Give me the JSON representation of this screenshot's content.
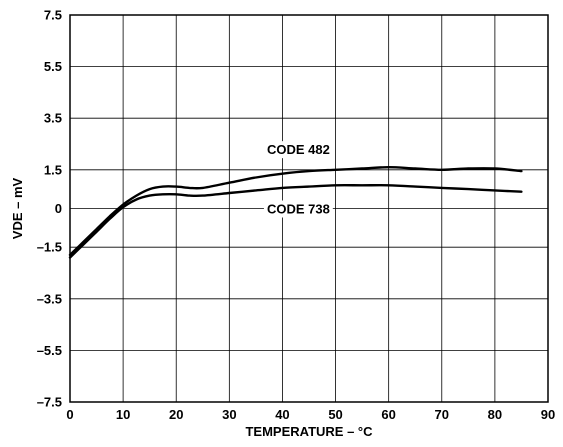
{
  "chart_data": {
    "type": "line",
    "xlabel": "TEMPERATURE – °C",
    "ylabel": "VDE – mV",
    "xlim": [
      0,
      90
    ],
    "ylim": [
      -7.5,
      7.5
    ],
    "x_ticks": [
      0,
      10,
      20,
      30,
      40,
      50,
      60,
      70,
      80,
      90
    ],
    "x_tick_labels": [
      "0",
      "10",
      "20",
      "30",
      "40",
      "50",
      "60",
      "70",
      "80",
      "90"
    ],
    "y_ticks": [
      7.5,
      5.5,
      3.5,
      1.5,
      0,
      -1.5,
      -3.5,
      -5.5,
      -7.5
    ],
    "y_tick_labels": [
      "7.5",
      "5.5",
      "3.5",
      "1.5",
      "0",
      "–1.5",
      "–3.5",
      "–5.5",
      "–7.5"
    ],
    "grid": true,
    "series": [
      {
        "name": "CODE 482",
        "x": [
          0,
          2.5,
          5,
          7.5,
          10,
          12.5,
          15,
          17.5,
          20,
          22.5,
          25,
          30,
          35,
          40,
          45,
          50,
          55,
          60,
          65,
          70,
          75,
          80,
          85
        ],
        "values": [
          -1.8,
          -1.3,
          -0.8,
          -0.3,
          0.15,
          0.5,
          0.75,
          0.85,
          0.85,
          0.8,
          0.8,
          1.0,
          1.2,
          1.35,
          1.45,
          1.5,
          1.55,
          1.6,
          1.55,
          1.5,
          1.55,
          1.55,
          1.45
        ]
      },
      {
        "name": "CODE 738",
        "x": [
          0,
          2.5,
          5,
          7.5,
          10,
          12.5,
          15,
          17.5,
          20,
          22.5,
          25,
          30,
          35,
          40,
          45,
          50,
          55,
          60,
          65,
          70,
          75,
          80,
          85
        ],
        "values": [
          -1.9,
          -1.4,
          -0.9,
          -0.4,
          0.05,
          0.35,
          0.5,
          0.55,
          0.55,
          0.5,
          0.5,
          0.6,
          0.7,
          0.8,
          0.85,
          0.9,
          0.9,
          0.9,
          0.85,
          0.8,
          0.75,
          0.7,
          0.65
        ]
      }
    ],
    "annotations": [
      {
        "text": "CODE 482",
        "x": 43,
        "y": 2.3
      },
      {
        "text": "CODE 738",
        "x": 43,
        "y": 0.0
      }
    ]
  }
}
